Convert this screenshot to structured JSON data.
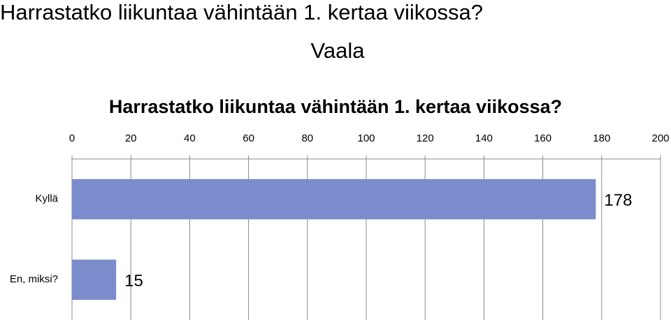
{
  "slide": {
    "title": "Harrastatko liikuntaa vähintään 1. kertaa viikossa?",
    "subtitle": "Vaala"
  },
  "chart_data": {
    "type": "bar",
    "orientation": "horizontal",
    "title": "Harrastatko liikuntaa vähintään 1. kertaa viikossa?",
    "categories": [
      "Kyllä",
      "En, miksi?"
    ],
    "values": [
      178,
      15
    ],
    "color": "#7b8ccc",
    "xlim": [
      0,
      200
    ],
    "xticks": [
      0,
      20,
      40,
      60,
      80,
      100,
      120,
      140,
      160,
      180,
      200
    ],
    "grid": true
  }
}
